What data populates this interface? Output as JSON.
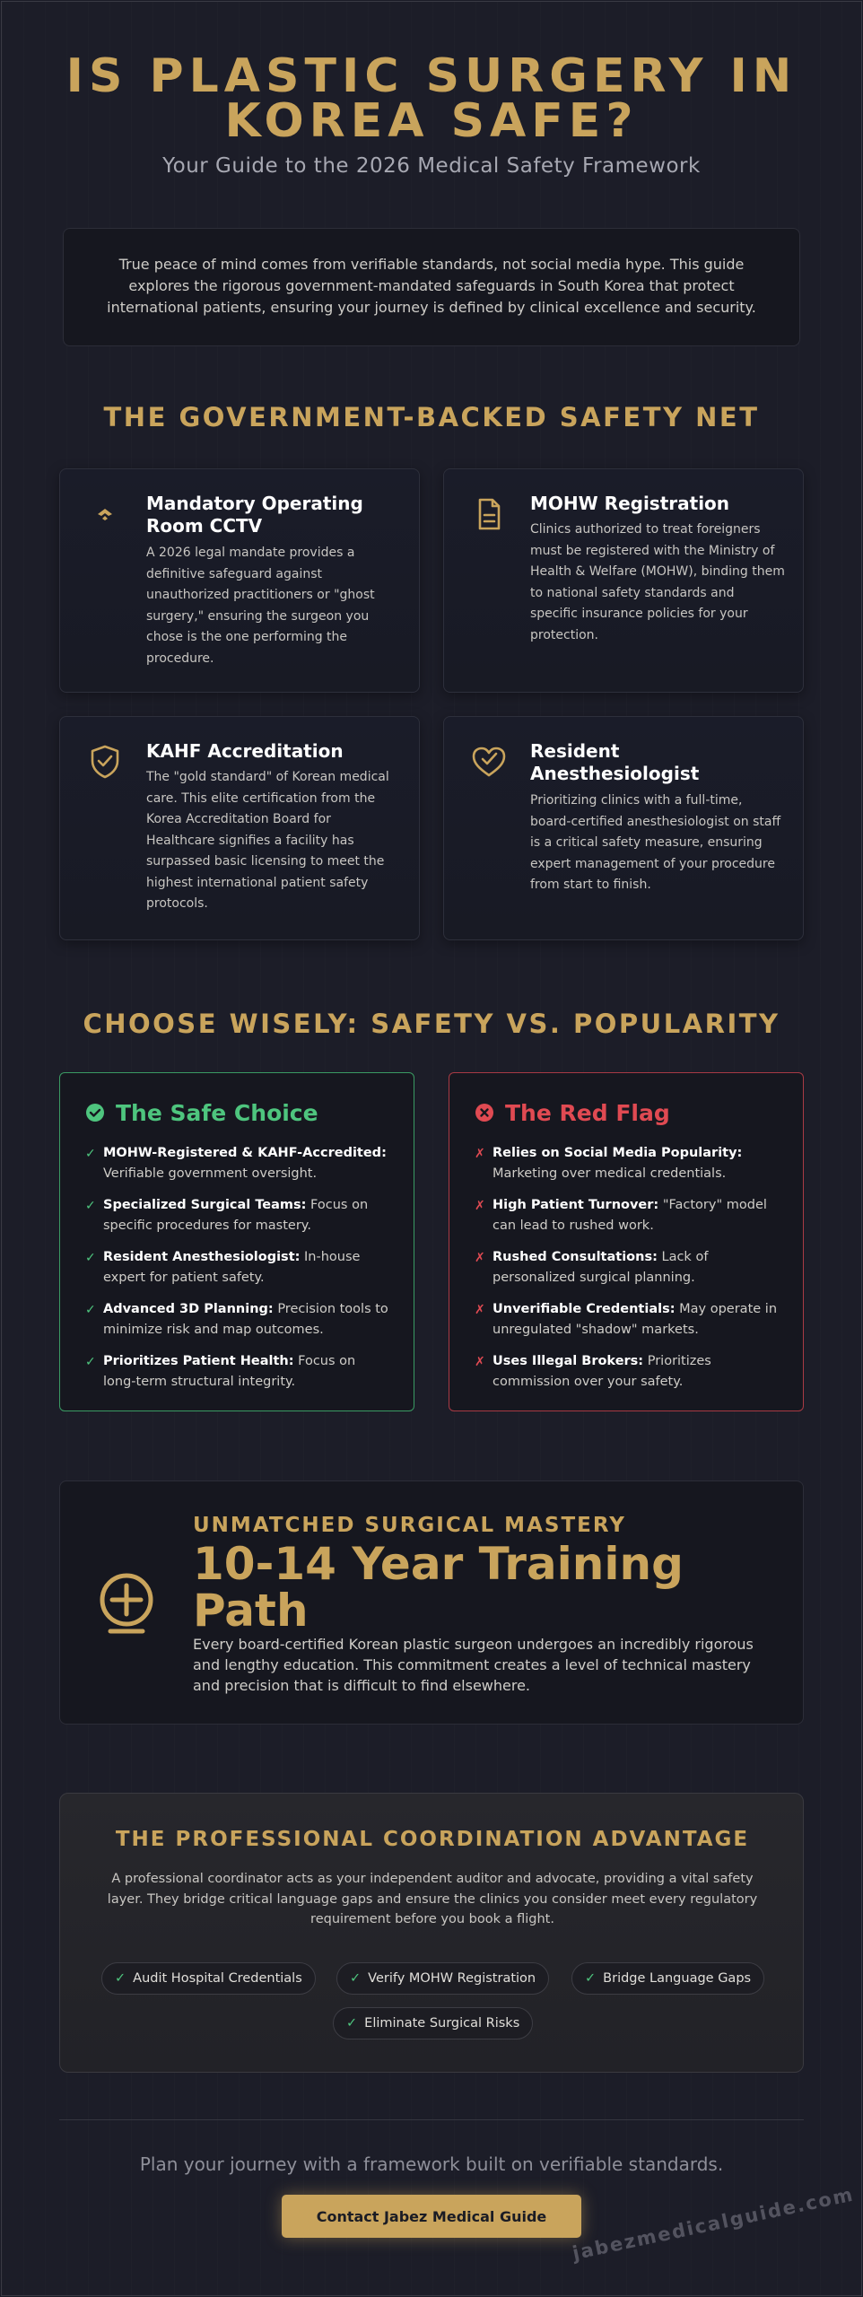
{
  "hero": {
    "title": "IS PLASTIC SURGERY IN KOREA SAFE?",
    "subtitle": "Your Guide to the 2026 Medical Safety Framework",
    "intro": "True peace of mind comes from verifiable standards, not social media hype. This guide explores the rigorous government-mandated safeguards in South Korea that protect international patients, ensuring your journey is defined by clinical excellence and security."
  },
  "safety_net": {
    "title": "THE GOVERNMENT-BACKED SAFETY NET",
    "cards": [
      {
        "title": "Mandatory Operating Room CCTV",
        "body": "A 2026 legal mandate provides a definitive safeguard against unauthorized practitioners or \"ghost surgery,\" ensuring the surgeon you chose is the one performing the procedure.",
        "icon": "video-camera-icon"
      },
      {
        "title": "MOHW Registration",
        "body": "Clinics authorized to treat foreigners must be registered with the Ministry of Health & Welfare (MOHW), binding them to national safety standards and specific insurance policies for your protection.",
        "icon": "document-icon"
      },
      {
        "title": "KAHF Accreditation",
        "body": "The \"gold standard\" of Korean medical care. This elite certification from the Korea Accreditation Board for Healthcare signifies a facility has surpassed basic licensing to meet the highest international patient safety protocols.",
        "icon": "shield-check-icon"
      },
      {
        "title": "Resident Anesthesiologist",
        "body": "Prioritizing clinics with a full-time, board-certified anesthesiologist on staff is a critical safety measure, ensuring expert management of your procedure from start to finish.",
        "icon": "heart-check-icon"
      }
    ]
  },
  "comparison": {
    "title": "CHOOSE WISELY: SAFETY VS. POPULARITY",
    "safe": {
      "heading": "The Safe Choice",
      "items": [
        {
          "label": "MOHW-Registered & KAHF-Accredited:",
          "text": "Verifiable government oversight."
        },
        {
          "label": "Specialized Surgical Teams:",
          "text": "Focus on specific procedures for mastery."
        },
        {
          "label": "Resident Anesthesiologist:",
          "text": "In-house expert for patient safety."
        },
        {
          "label": "Advanced 3D Planning:",
          "text": "Precision tools to minimize risk and map outcomes."
        },
        {
          "label": "Prioritizes Patient Health:",
          "text": "Focus on long-term structural integrity."
        }
      ]
    },
    "red": {
      "heading": "The Red Flag",
      "items": [
        {
          "label": "Relies on Social Media Popularity:",
          "text": "Marketing over medical credentials."
        },
        {
          "label": "High Patient Turnover:",
          "text": "\"Factory\" model can lead to rushed work."
        },
        {
          "label": "Rushed Consultations:",
          "text": "Lack of personalized surgical planning."
        },
        {
          "label": "Unverifiable Credentials:",
          "text": "May operate in unregulated \"shadow\" markets."
        },
        {
          "label": "Uses Illegal Brokers:",
          "text": "Prioritizes commission over your safety."
        }
      ]
    },
    "check_mark": "✓",
    "cross_mark": "✗"
  },
  "mastery": {
    "kicker": "UNMATCHED SURGICAL MASTERY",
    "headline": "10-14 Year Training Path",
    "body": "Every board-certified Korean plastic surgeon undergoes an incredibly rigorous and lengthy education. This commitment creates a level of technical mastery and precision that is difficult to find elsewhere."
  },
  "coordination": {
    "title": "THE PROFESSIONAL COORDINATION ADVANTAGE",
    "body": "A professional coordinator acts as your independent auditor and advocate, providing a vital safety layer. They bridge critical language gaps and ensure the clinics you consider meet every regulatory requirement before you book a flight.",
    "pills": [
      "Audit Hospital Credentials",
      "Verify MOHW Registration",
      "Bridge Language Gaps",
      "Eliminate Surgical Risks"
    ],
    "pill_mark": "✓"
  },
  "footer": {
    "text": "Plan your journey with a framework built on verifiable standards.",
    "cta": "Contact Jabez Medical Guide",
    "watermark": "jabezmedicalguide.com"
  },
  "colors": {
    "gold": "#c9a45c",
    "green": "#4ec57e",
    "red": "#e04a52",
    "background": "#1c1d28"
  }
}
